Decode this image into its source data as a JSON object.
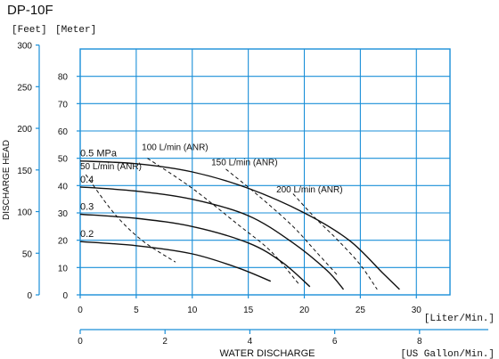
{
  "chart_data": {
    "type": "line",
    "title": "DP-10F",
    "ylabel": "DISCHARGE HEAD",
    "xlabel": "WATER DISCHARGE",
    "y_unit_feet": "[Feet]",
    "y_unit_meter": "[Meter]",
    "x_unit_liter": "[Liter/Min.]",
    "x_unit_gallon": "[US Gallon/Min.]",
    "x_lim": [
      0,
      33
    ],
    "y_lim_meter": [
      0,
      90
    ],
    "grid": true,
    "x_ticks_liter": [
      "0",
      "5",
      "10",
      "15",
      "20",
      "25",
      "30"
    ],
    "x_tick_values_liter": [
      0,
      5,
      10,
      15,
      20,
      25,
      30
    ],
    "x_ticks_gallon": [
      "0",
      "2",
      "4",
      "6",
      "8"
    ],
    "x_tick_values_gallon": [
      0,
      2,
      4,
      6,
      8
    ],
    "y_ticks_meter": [
      "0",
      "10",
      "20",
      "30",
      "40",
      "50",
      "60",
      "70",
      "80"
    ],
    "y_tick_values_meter": [
      0,
      10,
      20,
      30,
      40,
      50,
      60,
      70,
      80
    ],
    "y_ticks_feet": [
      "0",
      "50",
      "100",
      "150",
      "200",
      "250",
      "300"
    ],
    "y_tick_values_feet": [
      0,
      50,
      100,
      150,
      200,
      250,
      300
    ],
    "series": [
      {
        "name": "0.5 MPa",
        "x": [
          0,
          5,
          10,
          15,
          20,
          24,
          27,
          28.5
        ],
        "y": [
          49,
          48,
          45,
          39,
          30,
          20,
          8,
          2
        ]
      },
      {
        "name": "0.4",
        "x": [
          0,
          5,
          10,
          15,
          19,
          22,
          23.5
        ],
        "y": [
          39.5,
          38,
          35,
          29,
          19,
          9,
          2
        ]
      },
      {
        "name": "0.3",
        "x": [
          0,
          5,
          10,
          15,
          18,
          20.5
        ],
        "y": [
          29.5,
          28,
          25,
          19,
          12,
          3
        ]
      },
      {
        "name": "0.2",
        "x": [
          0,
          5,
          10,
          14,
          17
        ],
        "y": [
          19.5,
          18,
          15,
          10,
          5
        ]
      }
    ],
    "air_consumption": [
      {
        "name": "50 L/min (ANR)",
        "label_at": [
          0,
          46
        ],
        "x": [
          0.5,
          3,
          5.5,
          8.5
        ],
        "y": [
          44,
          30,
          20,
          12
        ]
      },
      {
        "name": "100 L/min (ANR)",
        "label_at": [
          5.5,
          53
        ],
        "x": [
          6,
          10,
          14,
          17,
          19.5
        ],
        "y": [
          50,
          39,
          26,
          16,
          4
        ]
      },
      {
        "name": "150 L/min (ANR)",
        "label_at": [
          11.7,
          47.5
        ],
        "x": [
          13,
          16,
          19,
          21,
          23
        ],
        "y": [
          46,
          36,
          25,
          16,
          7
        ]
      },
      {
        "name": "200 L/min (ANR)",
        "label_at": [
          17.5,
          37.5
        ],
        "x": [
          19,
          21,
          23,
          25,
          26.5
        ],
        "y": [
          37,
          28,
          20,
          11,
          2
        ]
      }
    ]
  }
}
